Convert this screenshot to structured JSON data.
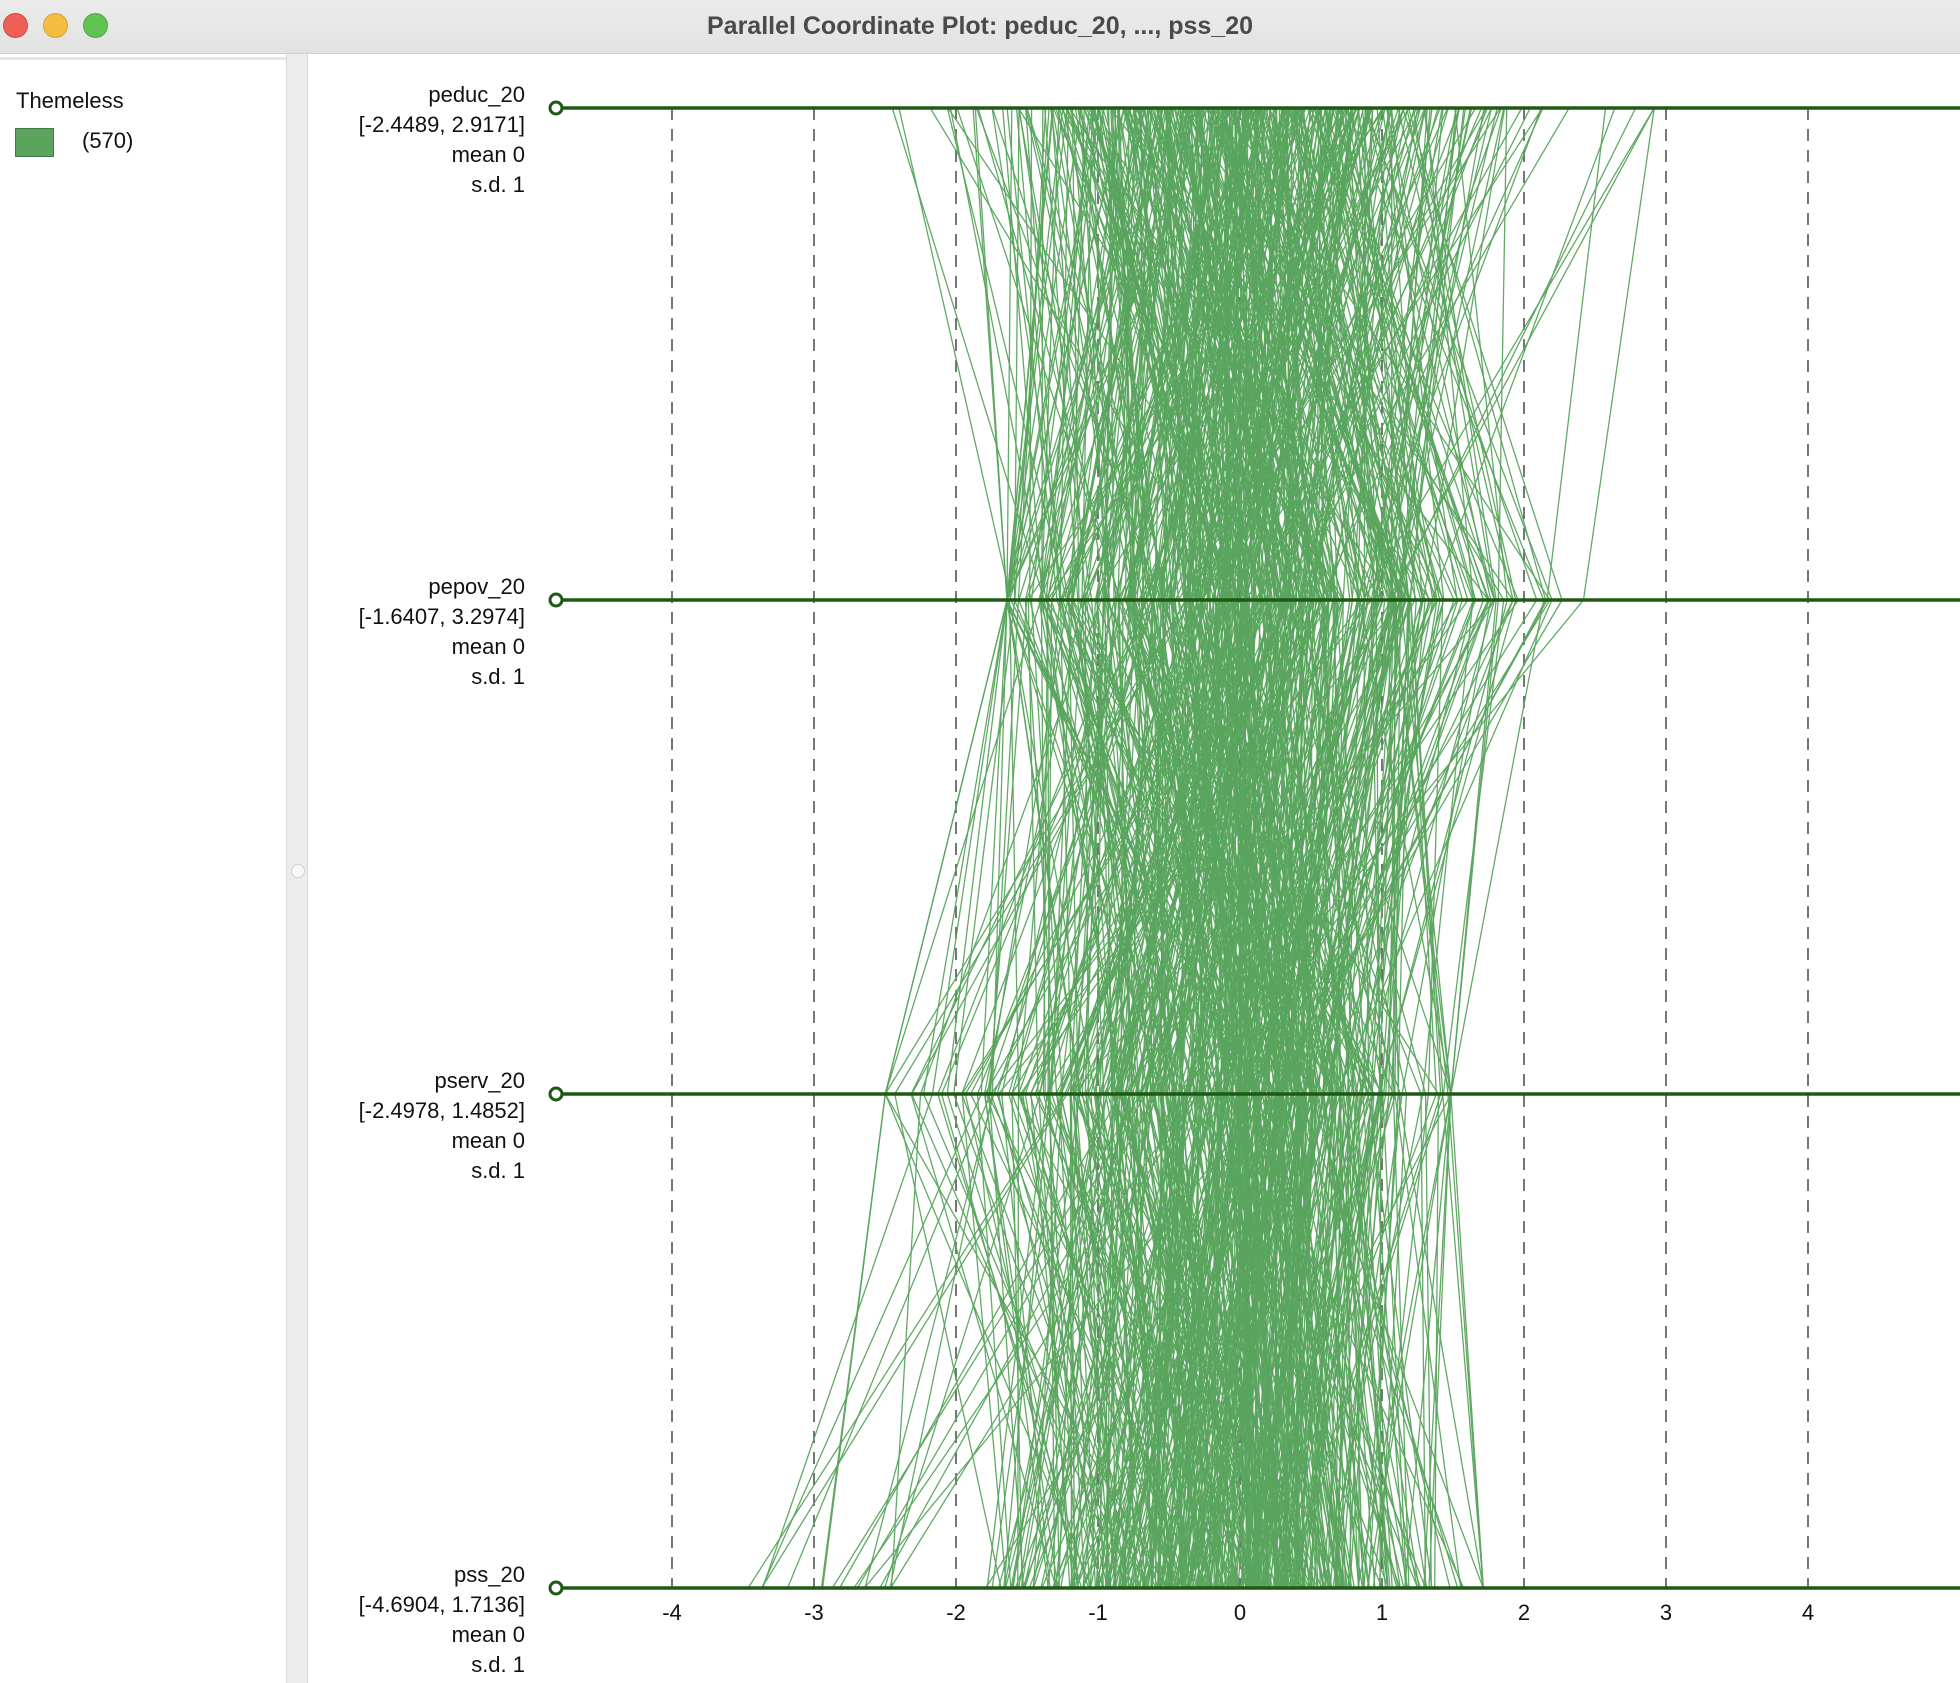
{
  "window": {
    "title": "Parallel Coordinate Plot: peduc_20, ..., pss_20"
  },
  "legend": {
    "title": "Themeless",
    "count_label": "(570)",
    "swatch_color": "#5aa45e"
  },
  "colors": {
    "line": "#5aa45e",
    "axis": "#1e5a14",
    "grid": "#555555"
  },
  "chart_data": {
    "type": "parallel_coordinates",
    "title": "Parallel Coordinate Plot: peduc_20, ..., pss_20",
    "n_observations": 570,
    "standardized": true,
    "xlim": [
      -4.8,
      4.8
    ],
    "x_ticks": [
      -4,
      -3,
      -2,
      -1,
      0,
      1,
      2,
      3,
      4
    ],
    "grid": "vertical dashed at ticks",
    "variables": [
      {
        "name": "peduc_20",
        "range_label": "[-2.4489, 2.9171]",
        "min": -2.4489,
        "max": 2.9171,
        "mean_label": "mean  0",
        "sd_label": "s.d.  1"
      },
      {
        "name": "pepov_20",
        "range_label": "[-1.6407, 3.2974]",
        "min": -1.6407,
        "max": 3.2974,
        "mean_label": "mean  0",
        "sd_label": "s.d.  1"
      },
      {
        "name": "pserv_20",
        "range_label": "[-2.4978, 1.4852]",
        "min": -2.4978,
        "max": 1.4852,
        "mean_label": "mean  0",
        "sd_label": "s.d.  1"
      },
      {
        "name": "pss_20",
        "range_label": "[-4.6904, 1.7136]",
        "min": -4.6904,
        "max": 1.7136,
        "mean_label": "mean  0",
        "sd_label": "s.d.  1"
      }
    ]
  }
}
